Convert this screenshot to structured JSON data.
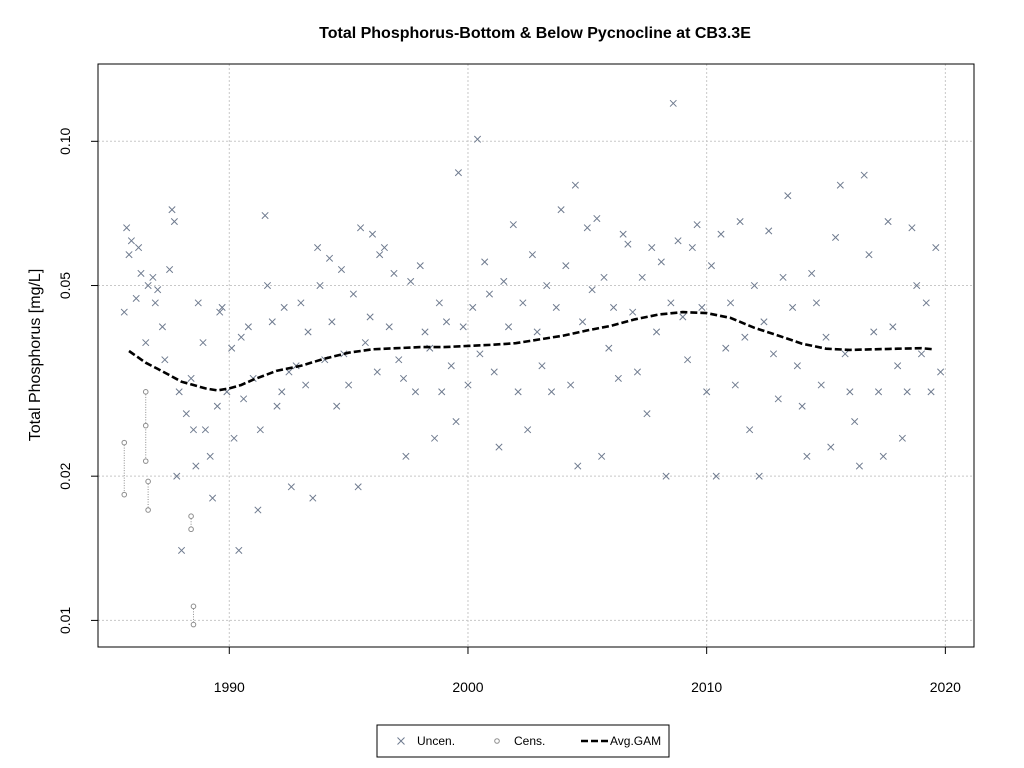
{
  "chart_data": {
    "type": "scatter",
    "title": "Total Phosphorus-Bottom & Below Pycnocline at CB3.3E",
    "xlabel": "",
    "ylabel": "Total Phosphorus [mg/L]",
    "y_scale": "log",
    "xlim": [
      1984.5,
      2021.2
    ],
    "ylim": [
      0.0088,
      0.145
    ],
    "grid": true,
    "legend_position": "bottom-center",
    "x_ticks": [
      {
        "value": 1990,
        "label": "1990"
      },
      {
        "value": 2000,
        "label": "2000"
      },
      {
        "value": 2010,
        "label": "2010"
      },
      {
        "value": 2020,
        "label": "2020"
      }
    ],
    "y_ticks": [
      {
        "value": 0.01,
        "label": "0.01"
      },
      {
        "value": 0.02,
        "label": "0.02"
      },
      {
        "value": 0.05,
        "label": "0.05"
      },
      {
        "value": 0.1,
        "label": "0.10"
      }
    ],
    "legend": [
      {
        "label": "Uncen.",
        "marker": "x"
      },
      {
        "label": "Cens.",
        "marker": "circle"
      },
      {
        "label": "Avg.GAM",
        "marker": "dashed-line"
      }
    ],
    "colors": {
      "uncensored": "#6f7b8f",
      "censored": "#8d8d8d",
      "gam": "#000000",
      "grid": "#c8c8c8"
    },
    "series": [
      {
        "name": "Uncen.",
        "style": "x",
        "points": [
          [
            1985.6,
            0.044
          ],
          [
            1985.7,
            0.066
          ],
          [
            1985.8,
            0.058
          ],
          [
            1985.9,
            0.062
          ],
          [
            1986.1,
            0.047
          ],
          [
            1986.2,
            0.06
          ],
          [
            1986.3,
            0.053
          ],
          [
            1986.5,
            0.038
          ],
          [
            1986.6,
            0.05
          ],
          [
            1986.8,
            0.052
          ],
          [
            1986.9,
            0.046
          ],
          [
            1987.0,
            0.049
          ],
          [
            1987.2,
            0.041
          ],
          [
            1987.3,
            0.035
          ],
          [
            1987.5,
            0.054
          ],
          [
            1987.6,
            0.072
          ],
          [
            1987.7,
            0.068
          ],
          [
            1987.8,
            0.02
          ],
          [
            1987.9,
            0.03
          ],
          [
            1988.0,
            0.014
          ],
          [
            1988.2,
            0.027
          ],
          [
            1988.4,
            0.032
          ],
          [
            1988.5,
            0.025
          ],
          [
            1988.6,
            0.021
          ],
          [
            1988.7,
            0.046
          ],
          [
            1988.9,
            0.038
          ],
          [
            1989.0,
            0.025
          ],
          [
            1989.2,
            0.022
          ],
          [
            1989.3,
            0.018
          ],
          [
            1989.5,
            0.028
          ],
          [
            1989.6,
            0.044
          ],
          [
            1989.7,
            0.045
          ],
          [
            1989.9,
            0.03
          ],
          [
            1990.1,
            0.037
          ],
          [
            1990.2,
            0.024
          ],
          [
            1990.4,
            0.014
          ],
          [
            1990.5,
            0.039
          ],
          [
            1990.6,
            0.029
          ],
          [
            1990.8,
            0.041
          ],
          [
            1991.0,
            0.032
          ],
          [
            1991.2,
            0.017
          ],
          [
            1991.3,
            0.025
          ],
          [
            1991.5,
            0.07
          ],
          [
            1991.6,
            0.05
          ],
          [
            1991.8,
            0.042
          ],
          [
            1992.0,
            0.028
          ],
          [
            1992.2,
            0.03
          ],
          [
            1992.3,
            0.045
          ],
          [
            1992.5,
            0.033
          ],
          [
            1992.6,
            0.019
          ],
          [
            1992.8,
            0.034
          ],
          [
            1993.0,
            0.046
          ],
          [
            1993.2,
            0.031
          ],
          [
            1993.3,
            0.04
          ],
          [
            1993.5,
            0.018
          ],
          [
            1993.7,
            0.06
          ],
          [
            1993.8,
            0.05
          ],
          [
            1994.0,
            0.035
          ],
          [
            1994.2,
            0.057
          ],
          [
            1994.3,
            0.042
          ],
          [
            1994.5,
            0.028
          ],
          [
            1994.7,
            0.054
          ],
          [
            1994.8,
            0.036
          ],
          [
            1995.0,
            0.031
          ],
          [
            1995.2,
            0.048
          ],
          [
            1995.4,
            0.019
          ],
          [
            1995.5,
            0.066
          ],
          [
            1995.7,
            0.038
          ],
          [
            1995.9,
            0.043
          ],
          [
            1996.0,
            0.064
          ],
          [
            1996.2,
            0.033
          ],
          [
            1996.3,
            0.058
          ],
          [
            1996.5,
            0.06
          ],
          [
            1996.7,
            0.041
          ],
          [
            1996.9,
            0.053
          ],
          [
            1997.1,
            0.035
          ],
          [
            1997.3,
            0.032
          ],
          [
            1997.4,
            0.022
          ],
          [
            1997.6,
            0.051
          ],
          [
            1997.8,
            0.03
          ],
          [
            1998.0,
            0.055
          ],
          [
            1998.2,
            0.04
          ],
          [
            1998.4,
            0.037
          ],
          [
            1998.6,
            0.024
          ],
          [
            1998.8,
            0.046
          ],
          [
            1998.9,
            0.03
          ],
          [
            1999.1,
            0.042
          ],
          [
            1999.3,
            0.034
          ],
          [
            1999.5,
            0.026
          ],
          [
            1999.6,
            0.086
          ],
          [
            1999.8,
            0.041
          ],
          [
            2000.0,
            0.031
          ],
          [
            2000.2,
            0.045
          ],
          [
            2000.4,
            0.101
          ],
          [
            2000.5,
            0.036
          ],
          [
            2000.7,
            0.056
          ],
          [
            2000.9,
            0.048
          ],
          [
            2001.1,
            0.033
          ],
          [
            2001.3,
            0.023
          ],
          [
            2001.5,
            0.051
          ],
          [
            2001.7,
            0.041
          ],
          [
            2001.9,
            0.067
          ],
          [
            2002.1,
            0.03
          ],
          [
            2002.3,
            0.046
          ],
          [
            2002.5,
            0.025
          ],
          [
            2002.7,
            0.058
          ],
          [
            2002.9,
            0.04
          ],
          [
            2003.1,
            0.034
          ],
          [
            2003.3,
            0.05
          ],
          [
            2003.5,
            0.03
          ],
          [
            2003.7,
            0.045
          ],
          [
            2003.9,
            0.072
          ],
          [
            2004.1,
            0.055
          ],
          [
            2004.3,
            0.031
          ],
          [
            2004.5,
            0.081
          ],
          [
            2004.6,
            0.021
          ],
          [
            2004.8,
            0.042
          ],
          [
            2005.0,
            0.066
          ],
          [
            2005.2,
            0.049
          ],
          [
            2005.4,
            0.069
          ],
          [
            2005.6,
            0.022
          ],
          [
            2005.7,
            0.052
          ],
          [
            2005.9,
            0.037
          ],
          [
            2006.1,
            0.045
          ],
          [
            2006.3,
            0.032
          ],
          [
            2006.5,
            0.064
          ],
          [
            2006.7,
            0.061
          ],
          [
            2006.9,
            0.044
          ],
          [
            2007.1,
            0.033
          ],
          [
            2007.3,
            0.052
          ],
          [
            2007.5,
            0.027
          ],
          [
            2007.7,
            0.06
          ],
          [
            2007.9,
            0.04
          ],
          [
            2008.1,
            0.056
          ],
          [
            2008.3,
            0.02
          ],
          [
            2008.5,
            0.046
          ],
          [
            2008.6,
            0.12
          ],
          [
            2008.8,
            0.062
          ],
          [
            2009.0,
            0.043
          ],
          [
            2009.2,
            0.035
          ],
          [
            2009.4,
            0.06
          ],
          [
            2009.6,
            0.067
          ],
          [
            2009.8,
            0.045
          ],
          [
            2010.0,
            0.03
          ],
          [
            2010.2,
            0.055
          ],
          [
            2010.4,
            0.02
          ],
          [
            2010.6,
            0.064
          ],
          [
            2010.8,
            0.037
          ],
          [
            2011.0,
            0.046
          ],
          [
            2011.2,
            0.031
          ],
          [
            2011.4,
            0.068
          ],
          [
            2011.6,
            0.039
          ],
          [
            2011.8,
            0.025
          ],
          [
            2012.0,
            0.05
          ],
          [
            2012.2,
            0.02
          ],
          [
            2012.4,
            0.042
          ],
          [
            2012.6,
            0.065
          ],
          [
            2012.8,
            0.036
          ],
          [
            2013.0,
            0.029
          ],
          [
            2013.2,
            0.052
          ],
          [
            2013.4,
            0.077
          ],
          [
            2013.6,
            0.045
          ],
          [
            2013.8,
            0.034
          ],
          [
            2014.0,
            0.028
          ],
          [
            2014.2,
            0.022
          ],
          [
            2014.4,
            0.053
          ],
          [
            2014.6,
            0.046
          ],
          [
            2014.8,
            0.031
          ],
          [
            2015.0,
            0.039
          ],
          [
            2015.2,
            0.023
          ],
          [
            2015.4,
            0.063
          ],
          [
            2015.6,
            0.081
          ],
          [
            2015.8,
            0.036
          ],
          [
            2016.0,
            0.03
          ],
          [
            2016.2,
            0.026
          ],
          [
            2016.4,
            0.021
          ],
          [
            2016.6,
            0.085
          ],
          [
            2016.8,
            0.058
          ],
          [
            2017.0,
            0.04
          ],
          [
            2017.2,
            0.03
          ],
          [
            2017.4,
            0.022
          ],
          [
            2017.6,
            0.068
          ],
          [
            2017.8,
            0.041
          ],
          [
            2018.0,
            0.034
          ],
          [
            2018.2,
            0.024
          ],
          [
            2018.4,
            0.03
          ],
          [
            2018.6,
            0.066
          ],
          [
            2018.8,
            0.05
          ],
          [
            2019.0,
            0.036
          ],
          [
            2019.2,
            0.046
          ],
          [
            2019.4,
            0.03
          ],
          [
            2019.6,
            0.06
          ],
          [
            2019.8,
            0.033
          ]
        ]
      },
      {
        "name": "Cens.",
        "style": "circle",
        "points": [
          [
            1985.6,
            0.0235
          ],
          [
            1985.6,
            0.0183
          ],
          [
            1986.5,
            0.03
          ],
          [
            1986.5,
            0.0255
          ],
          [
            1986.5,
            0.0215
          ],
          [
            1986.6,
            0.0195
          ],
          [
            1986.6,
            0.017
          ],
          [
            1988.4,
            0.0165
          ],
          [
            1988.4,
            0.0155
          ],
          [
            1988.5,
            0.0107
          ],
          [
            1988.5,
            0.0098
          ]
        ]
      },
      {
        "name": "Avg.GAM",
        "style": "dashed-line",
        "points": [
          [
            1985.8,
            0.0365
          ],
          [
            1986.5,
            0.0345
          ],
          [
            1987.0,
            0.0335
          ],
          [
            1987.5,
            0.0325
          ],
          [
            1988.0,
            0.0315
          ],
          [
            1988.5,
            0.031
          ],
          [
            1989.0,
            0.0305
          ],
          [
            1989.5,
            0.0302
          ],
          [
            1990.0,
            0.0305
          ],
          [
            1990.5,
            0.031
          ],
          [
            1991.0,
            0.0318
          ],
          [
            1991.5,
            0.0325
          ],
          [
            1992.0,
            0.0332
          ],
          [
            1993.0,
            0.034
          ],
          [
            1994.0,
            0.0352
          ],
          [
            1995.0,
            0.0362
          ],
          [
            1996.0,
            0.0368
          ],
          [
            1997.0,
            0.037
          ],
          [
            1998.0,
            0.0372
          ],
          [
            1999.0,
            0.0372
          ],
          [
            2000.0,
            0.0374
          ],
          [
            2001.0,
            0.0376
          ],
          [
            2002.0,
            0.0379
          ],
          [
            2003.0,
            0.0386
          ],
          [
            2004.0,
            0.0393
          ],
          [
            2005.0,
            0.0403
          ],
          [
            2006.0,
            0.0412
          ],
          [
            2007.0,
            0.0425
          ],
          [
            2008.0,
            0.0435
          ],
          [
            2009.0,
            0.044
          ],
          [
            2010.0,
            0.0438
          ],
          [
            2011.0,
            0.0428
          ],
          [
            2012.0,
            0.0408
          ],
          [
            2013.0,
            0.0393
          ],
          [
            2014.0,
            0.0378
          ],
          [
            2015.0,
            0.0369
          ],
          [
            2016.0,
            0.0367
          ],
          [
            2017.0,
            0.0368
          ],
          [
            2018.0,
            0.0369
          ],
          [
            2019.0,
            0.037
          ],
          [
            2019.5,
            0.0368
          ]
        ]
      }
    ]
  }
}
